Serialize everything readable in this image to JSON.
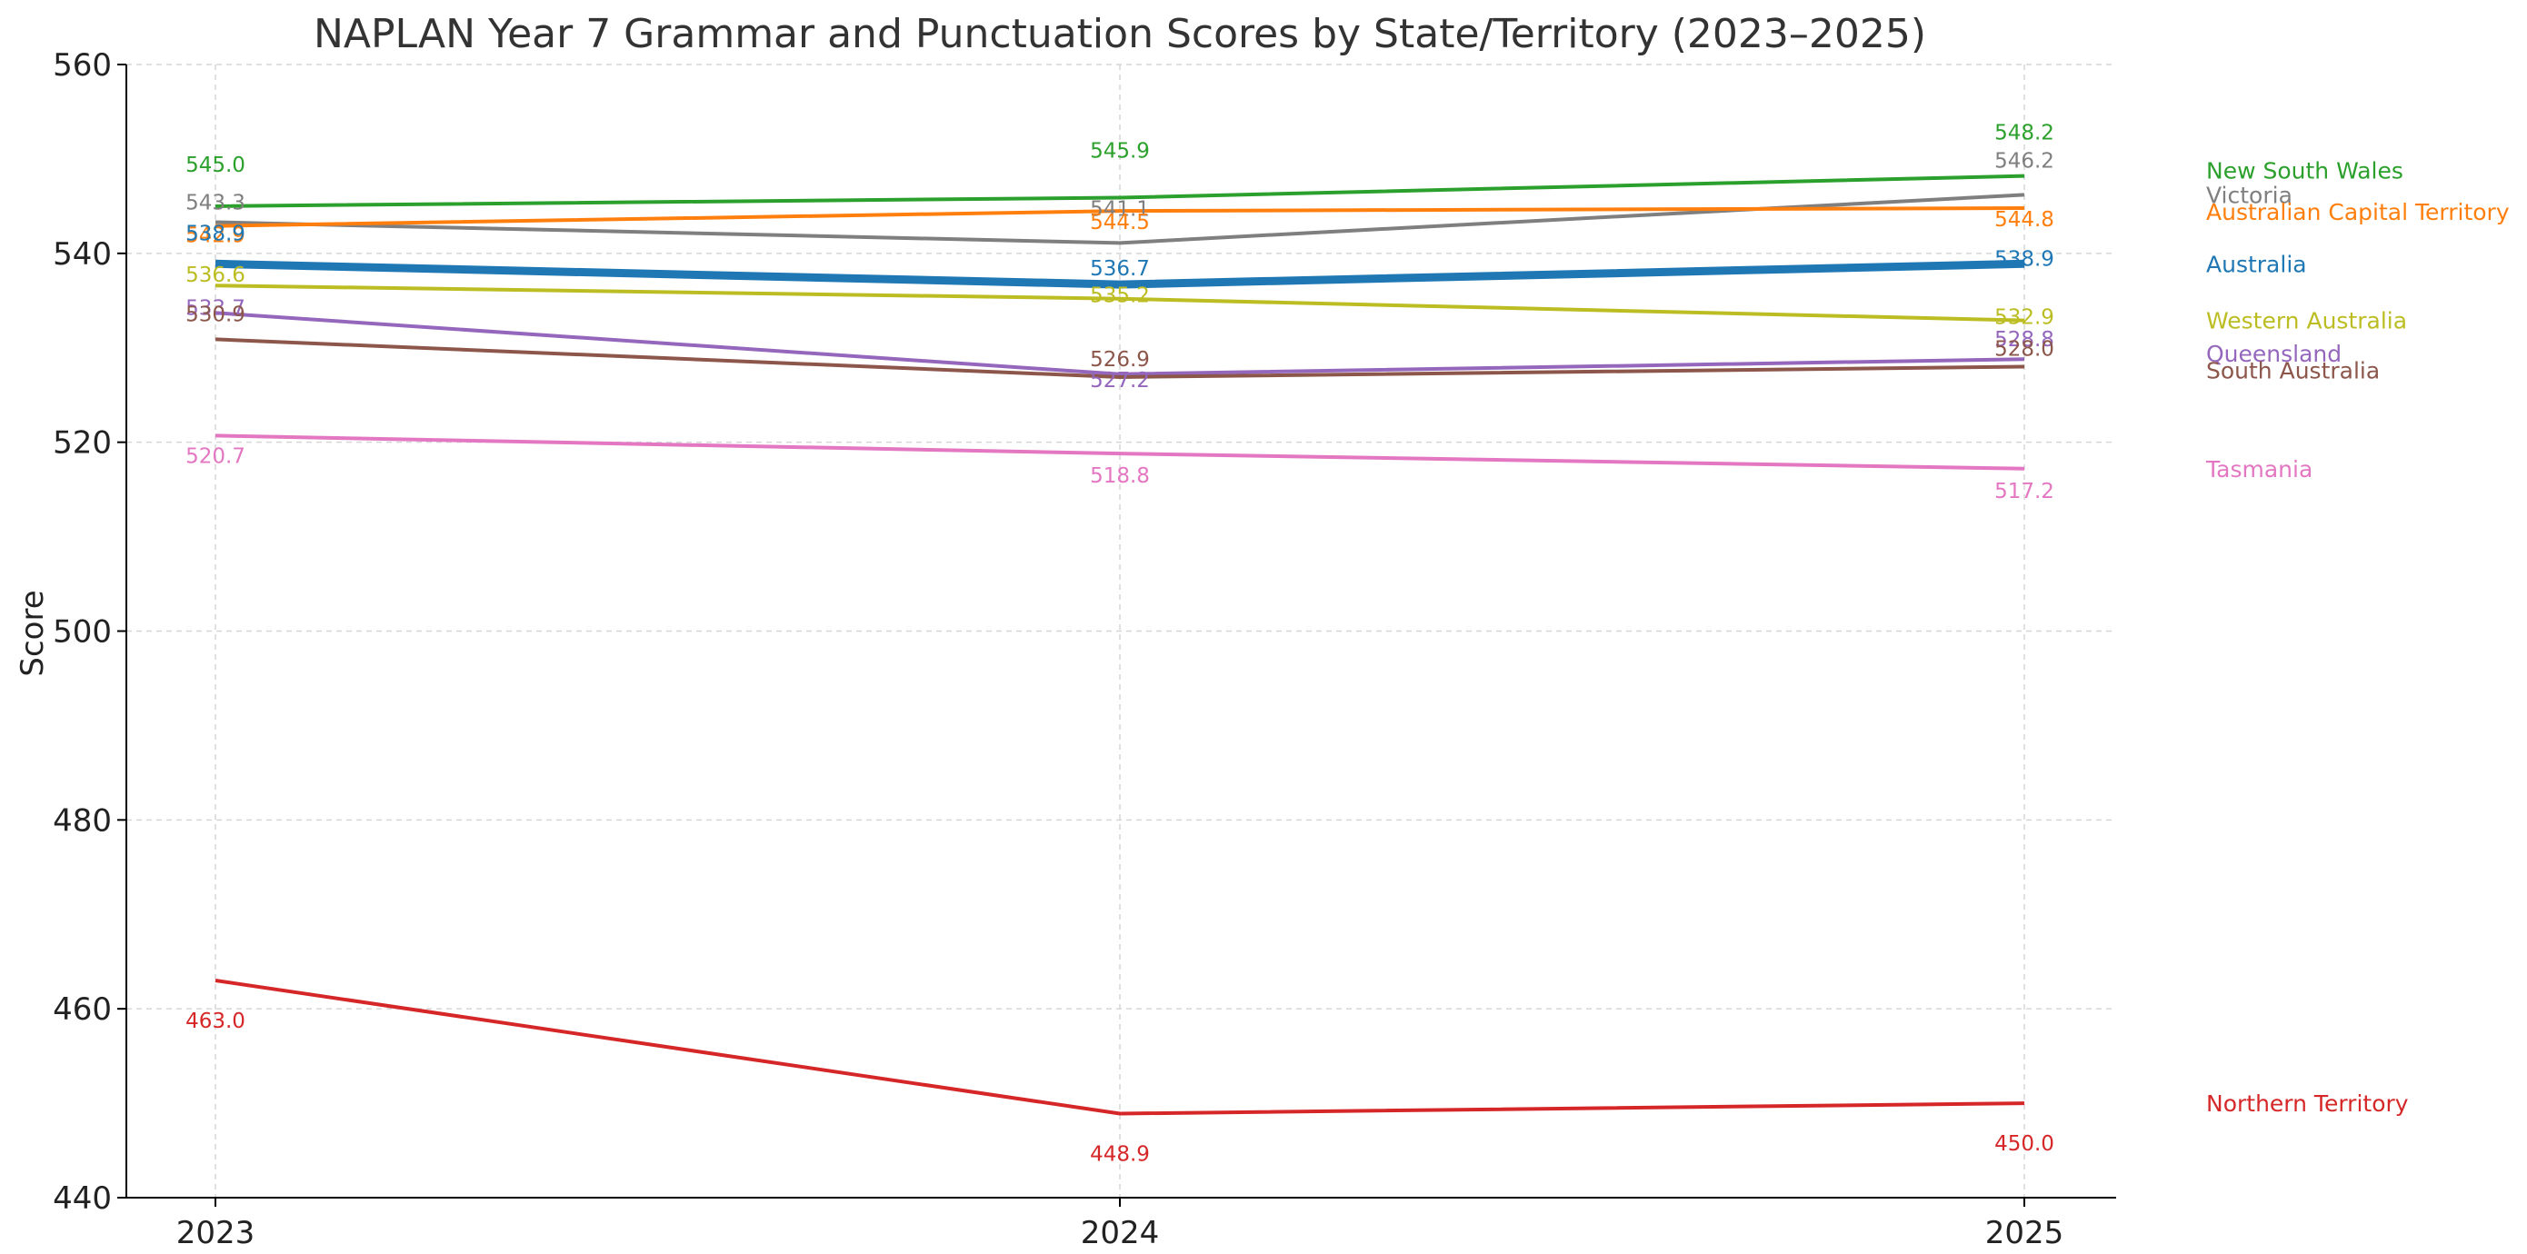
{
  "chart_data": {
    "type": "line",
    "title": "NAPLAN Year 7 Grammar and Punctuation Scores by State/Territory (2023–2025)",
    "xlabel": "",
    "ylabel": "Score",
    "x": [
      2023,
      2024,
      2025
    ],
    "ylim": [
      440,
      560
    ],
    "yticks": [
      440,
      460,
      480,
      500,
      520,
      540,
      560
    ],
    "grid": true,
    "legend": "line-end labels on the right",
    "series": [
      {
        "name": "New South Wales",
        "values": [
          545.0,
          545.9,
          548.2
        ],
        "color": "#2ca02c",
        "emphasis": false
      },
      {
        "name": "Victoria",
        "values": [
          543.3,
          541.1,
          546.2
        ],
        "color": "#7f7f7f",
        "emphasis": false
      },
      {
        "name": "Australian Capital Territory",
        "values": [
          542.9,
          544.5,
          544.8
        ],
        "color": "#ff7f0e",
        "emphasis": false
      },
      {
        "name": "Australia",
        "values": [
          538.9,
          536.7,
          538.9
        ],
        "color": "#1f77b4",
        "emphasis": true
      },
      {
        "name": "Western Australia",
        "values": [
          536.6,
          535.2,
          532.9
        ],
        "color": "#bcbd22",
        "emphasis": false
      },
      {
        "name": "Queensland",
        "values": [
          533.7,
          527.2,
          528.8
        ],
        "color": "#9467bd",
        "emphasis": false
      },
      {
        "name": "South Australia",
        "values": [
          530.9,
          526.9,
          528.0
        ],
        "color": "#8c564b",
        "emphasis": false
      },
      {
        "name": "Tasmania",
        "values": [
          520.7,
          518.8,
          517.2
        ],
        "color": "#e377c2",
        "emphasis": false
      },
      {
        "name": "Northern Territory",
        "values": [
          463.0,
          448.9,
          450.0
        ],
        "color": "#d62728",
        "emphasis": false
      }
    ]
  }
}
